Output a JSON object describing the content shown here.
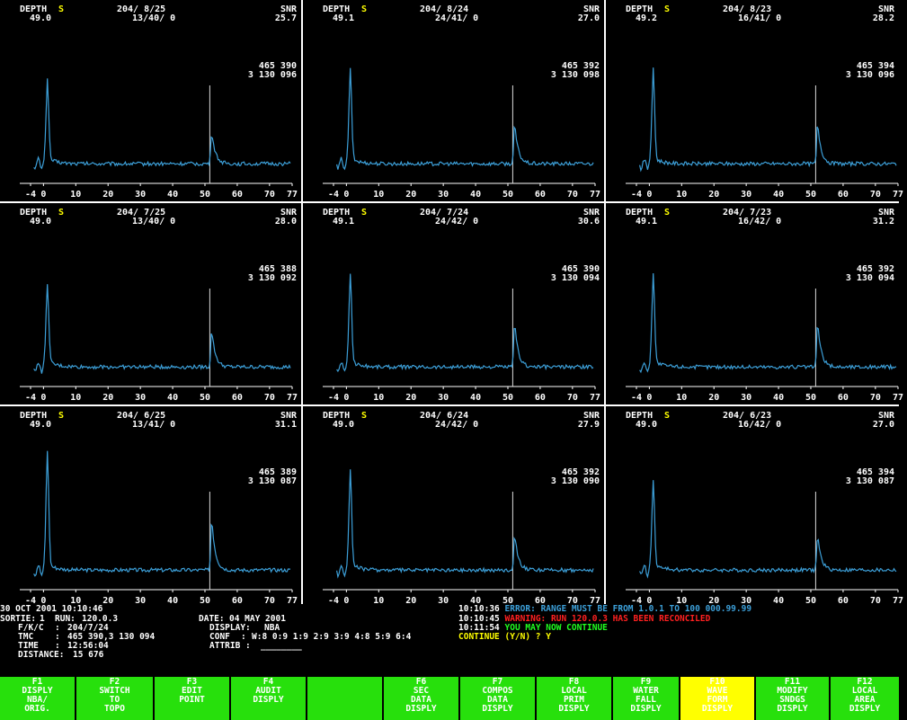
{
  "colors": {
    "trace": "#3c9fd8",
    "accent_yellow": "#ffff00",
    "error_blue": "#3c9fd8",
    "warning_red": "#ff2020",
    "ok_green": "#20ff20",
    "fkey_green": "#27e00c"
  },
  "panels": [
    {
      "depth_label": "DEPTH",
      "flag": "S",
      "depth": "49.0",
      "cell": "204/ 8/25",
      "counts": "13/40/ 0",
      "snr_label": "SNR",
      "snr": "25.7",
      "easting": "465 390",
      "northing": "3 130 096",
      "chart_data": {
        "type": "line",
        "xlim": [
          -4,
          77
        ],
        "ticks": [
          "-4",
          "0",
          "10",
          "20",
          "30",
          "40",
          "50",
          "60",
          "70",
          "77"
        ],
        "peak1": 0.62,
        "marker_x": 51.5,
        "peak2": 0.26
      }
    },
    {
      "depth_label": "DEPTH",
      "flag": "S",
      "depth": "49.1",
      "cell": "204/ 8/24",
      "counts": "24/41/ 0",
      "snr_label": "SNR",
      "snr": "27.0",
      "easting": "465 392",
      "northing": "3 130 098",
      "chart_data": {
        "type": "line",
        "xlim": [
          -4,
          77
        ],
        "ticks": [
          "-4",
          "0",
          "10",
          "20",
          "30",
          "40",
          "50",
          "60",
          "70",
          "77"
        ],
        "peak1": 0.7,
        "marker_x": 51.5,
        "peak2": 0.32
      }
    },
    {
      "depth_label": "DEPTH",
      "flag": "S",
      "depth": "49.2",
      "cell": "204/ 8/23",
      "counts": "16/41/ 0",
      "snr_label": "SNR",
      "snr": "28.2",
      "easting": "465 394",
      "northing": "3 130 096",
      "chart_data": {
        "type": "line",
        "xlim": [
          -4,
          77
        ],
        "ticks": [
          "-4",
          "0",
          "10",
          "20",
          "30",
          "40",
          "50",
          "60",
          "70",
          "77"
        ],
        "peak1": 0.7,
        "marker_x": 51.5,
        "peak2": 0.33
      }
    },
    {
      "depth_label": "DEPTH",
      "flag": "S",
      "depth": "49.0",
      "cell": "204/ 7/25",
      "counts": "13/40/ 0",
      "snr_label": "SNR",
      "snr": "28.0",
      "easting": "465 388",
      "northing": "3 130 092",
      "chart_data": {
        "type": "line",
        "xlim": [
          -4,
          77
        ],
        "ticks": [
          "-4",
          "0",
          "10",
          "20",
          "30",
          "40",
          "50",
          "60",
          "70",
          "77"
        ],
        "peak1": 0.62,
        "marker_x": 51.5,
        "peak2": 0.3
      }
    },
    {
      "depth_label": "DEPTH",
      "flag": "S",
      "depth": "49.1",
      "cell": "204/ 7/24",
      "counts": "24/42/ 0",
      "snr_label": "SNR",
      "snr": "30.6",
      "easting": "465 390",
      "northing": "3 130 094",
      "chart_data": {
        "type": "line",
        "xlim": [
          -4,
          77
        ],
        "ticks": [
          "-4",
          "0",
          "10",
          "20",
          "30",
          "40",
          "50",
          "60",
          "70",
          "77"
        ],
        "peak1": 0.7,
        "marker_x": 51.5,
        "peak2": 0.35
      }
    },
    {
      "depth_label": "DEPTH",
      "flag": "S",
      "depth": "49.1",
      "cell": "204/ 7/23",
      "counts": "16/42/ 0",
      "snr_label": "SNR",
      "snr": "31.2",
      "easting": "465 392",
      "northing": "3 130 094",
      "chart_data": {
        "type": "line",
        "xlim": [
          -4,
          77
        ],
        "ticks": [
          "-4",
          "0",
          "10",
          "20",
          "30",
          "40",
          "50",
          "60",
          "70",
          "77"
        ],
        "peak1": 0.7,
        "marker_x": 51.5,
        "peak2": 0.36
      }
    },
    {
      "depth_label": "DEPTH",
      "flag": "S",
      "depth": "49.0",
      "cell": "204/ 6/25",
      "counts": "13/41/ 0",
      "snr_label": "SNR",
      "snr": "31.1",
      "easting": "465 389",
      "northing": "3 130 087",
      "chart_data": {
        "type": "line",
        "xlim": [
          -4,
          77
        ],
        "ticks": [
          "-4",
          "0",
          "10",
          "20",
          "30",
          "40",
          "50",
          "60",
          "70",
          "77"
        ],
        "peak1": 0.9,
        "marker_x": 51.5,
        "peak2": 0.42
      }
    },
    {
      "depth_label": "DEPTH",
      "flag": "S",
      "depth": "49.0",
      "cell": "204/ 6/24",
      "counts": "24/42/ 0",
      "snr_label": "SNR",
      "snr": "27.9",
      "easting": "465 392",
      "northing": "3 130 090",
      "chart_data": {
        "type": "line",
        "xlim": [
          -4,
          77
        ],
        "ticks": [
          "-4",
          "0",
          "10",
          "20",
          "30",
          "40",
          "50",
          "60",
          "70",
          "77"
        ],
        "peak1": 0.75,
        "marker_x": 51.5,
        "peak2": 0.3
      }
    },
    {
      "depth_label": "DEPTH",
      "flag": "S",
      "depth": "49.0",
      "cell": "204/ 6/23",
      "counts": "16/42/ 0",
      "snr_label": "SNR",
      "snr": "27.0",
      "easting": "465 394",
      "northing": "3 130 087",
      "chart_data": {
        "type": "line",
        "xlim": [
          -4,
          77
        ],
        "ticks": [
          "-4",
          "0",
          "10",
          "20",
          "30",
          "40",
          "50",
          "60",
          "70",
          "77"
        ],
        "peak1": 0.66,
        "marker_x": 51.5,
        "peak2": 0.28
      }
    }
  ],
  "status": {
    "datetime": "30 OCT 2001 10:10:46",
    "sortie_label": "SORTIE:",
    "sortie": "1",
    "run_label": "RUN:",
    "run": "120.0.3",
    "date_label": "DATE:",
    "date": "04 MAY 2001",
    "fkc_label": "F/K/C",
    "fkc": "204/7/24",
    "display_label": "DISPLAY:",
    "display": "NBA",
    "tmc_label": "TMC",
    "tmc": "465 390,3 130 094",
    "conf_label": "CONF",
    "conf": "W:8 0:9 1:9 2:9 3:9 4:8 5:9 6:4",
    "time_label": "TIME",
    "time": "12:56:04",
    "attrib_label": "ATTRIB :",
    "attrib": "________",
    "distance_label": "DISTANCE:",
    "distance": "15 676",
    "messages": [
      {
        "time": "10:10:36",
        "tag": "ERROR:",
        "text": "RANGE MUST BE FROM 1.0.1 TO 100 000.99.99"
      },
      {
        "time": "10:10:45",
        "tag": "WARNING:",
        "text": "RUN 120.0.3 HAS BEEN RECONCILED"
      },
      {
        "time": "10:11:54",
        "tag": "",
        "text": "YOU MAY NOW CONTINUE"
      }
    ],
    "prompt": "CONTINUE (Y/N) ? Y"
  },
  "fkeys": [
    {
      "key": "F1",
      "lines": [
        "DISPLY",
        "NBA/",
        "ORIG."
      ]
    },
    {
      "key": "F2",
      "lines": [
        "SWITCH",
        "TO",
        "TOPO"
      ]
    },
    {
      "key": "F3",
      "lines": [
        "EDIT",
        "POINT",
        ""
      ]
    },
    {
      "key": "F4",
      "lines": [
        "AUDIT",
        "DISPLY",
        ""
      ]
    },
    {
      "key": "",
      "lines": [
        "",
        "",
        ""
      ]
    },
    {
      "key": "F6",
      "lines": [
        "SEC",
        "DATA",
        "DISPLY"
      ]
    },
    {
      "key": "F7",
      "lines": [
        "COMPOS",
        "DATA",
        "DISPLY"
      ]
    },
    {
      "key": "F8",
      "lines": [
        "LOCAL",
        "PRIM",
        "DISPLY"
      ]
    },
    {
      "key": "F9",
      "lines": [
        "WATER",
        "FALL",
        "DISPLY"
      ]
    },
    {
      "key": "F10",
      "lines": [
        "WAVE",
        "FORM",
        "DISPLY"
      ],
      "active": true
    },
    {
      "key": "F11",
      "lines": [
        "MODIFY",
        "SNDGS",
        "DISPLY"
      ]
    },
    {
      "key": "F12",
      "lines": [
        "LOCAL",
        "AREA",
        "DISPLY"
      ]
    }
  ]
}
